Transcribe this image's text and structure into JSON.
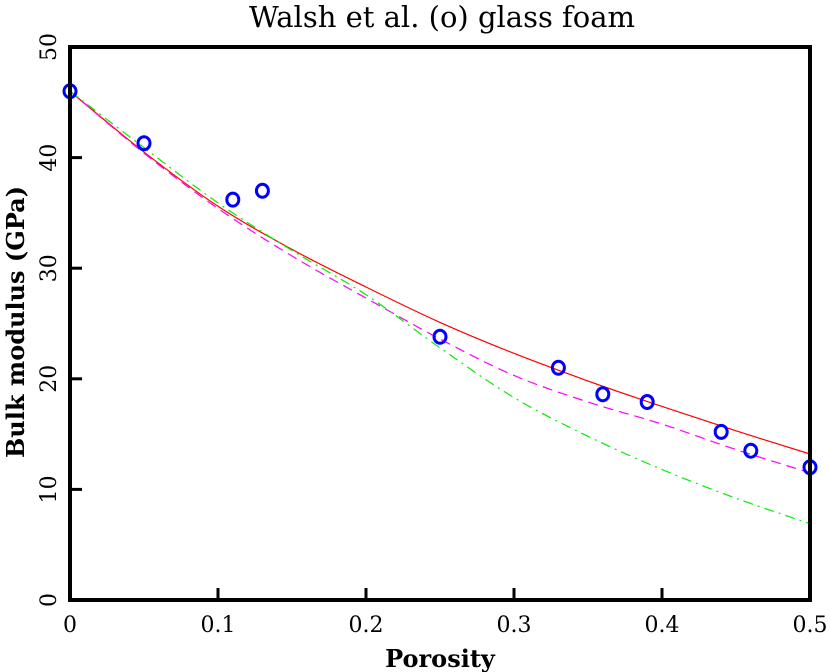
{
  "chart_data": {
    "type": "line",
    "title": "Walsh et al. (o) glass foam",
    "xlabel": "Porosity",
    "ylabel": "Bulk modulus (GPa)",
    "xlim": [
      0,
      0.5
    ],
    "ylim": [
      0,
      50
    ],
    "xticks": [
      "0",
      "0.1",
      "0.2",
      "0.3",
      "0.4",
      "0.5"
    ],
    "yticks": [
      "0",
      "10",
      "20",
      "30",
      "40",
      "50"
    ],
    "grid": false,
    "points": {
      "marker": "circle",
      "color": "#0000ff",
      "x": [
        0,
        0.05,
        0.11,
        0.13,
        0.25,
        0.33,
        0.36,
        0.39,
        0.44,
        0.46,
        0.5
      ],
      "y": [
        46,
        41.3,
        36.2,
        37,
        23.8,
        21,
        18.6,
        17.9,
        15.2,
        13.5,
        12
      ]
    },
    "curves_x": [
      0,
      0.05,
      0.1,
      0.15,
      0.2,
      0.25,
      0.3,
      0.35,
      0.4,
      0.45,
      0.5
    ],
    "series": [
      {
        "style": "solid",
        "color": "#ff0000",
        "values": [
          46,
          40.5,
          35.6,
          31.7,
          28.3,
          25.1,
          22.3,
          19.8,
          17.5,
          15.3,
          13.2
        ]
      },
      {
        "style": "dashed",
        "color": "#ff00ff",
        "values": [
          46,
          40.4,
          35.4,
          31.1,
          27.3,
          23.6,
          20.3,
          17.9,
          15.9,
          13.6,
          11.5
        ]
      },
      {
        "style": "dash-dot",
        "color": "#00ee00",
        "values": [
          46,
          40.9,
          35.9,
          31.6,
          27.6,
          22.8,
          18.3,
          14.8,
          11.8,
          9.2,
          6.9
        ]
      }
    ]
  }
}
